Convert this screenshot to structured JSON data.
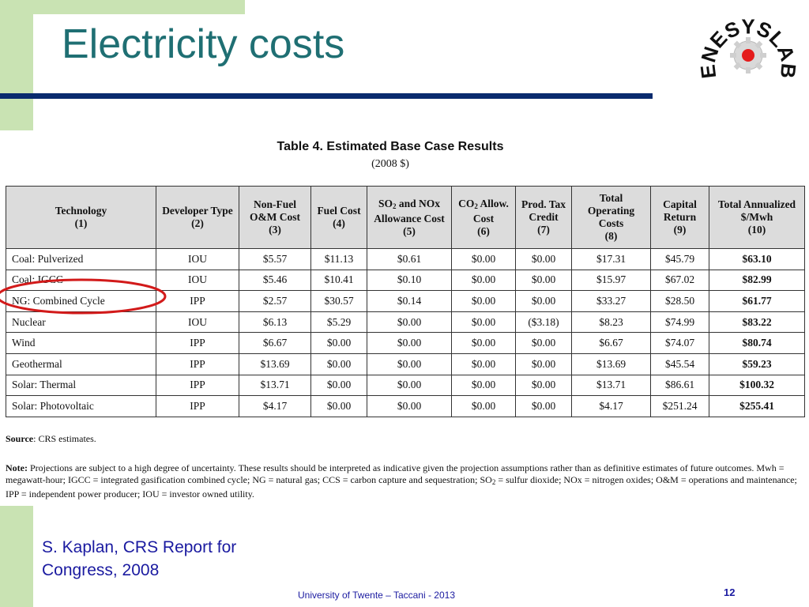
{
  "slide": {
    "title": "Electricity costs",
    "logo_text": "ENESYSLAB",
    "citation_line1": "S. Kaplan, CRS Report for",
    "citation_line2": "Congress, 2008",
    "footer": "University of Twente – Taccani - 2013",
    "page_number": "12"
  },
  "colors": {
    "accent_green": "#c9e3b3",
    "title_teal": "#1f6f73",
    "rule_navy": "#0a2b6e",
    "footer_blue": "#1a1aa0",
    "ellipse_red": "#d21a1a"
  },
  "table": {
    "title": "Table 4. Estimated Base Case Results",
    "subtitle": "(2008 $)",
    "headers": [
      {
        "line1": "Technology",
        "line2": "(1)"
      },
      {
        "line1": "Developer Type",
        "line2": "(2)"
      },
      {
        "line1": "Non-Fuel",
        "line2": "O&M Cost",
        "line3": "(3)"
      },
      {
        "line1": "Fuel Cost",
        "line2": "(4)"
      },
      {
        "pre": "SO",
        "sub": "2",
        "post": " and NOx",
        "line2": "Allowance Cost",
        "line3": "(5)"
      },
      {
        "pre": "CO",
        "sub": "2",
        "post": " Allow.",
        "line2": "Cost",
        "line3": "(6)"
      },
      {
        "line1": "Prod. Tax",
        "line2": "Credit",
        "line3": "(7)"
      },
      {
        "line1": "Total",
        "line2": "Operating",
        "line3": "Costs",
        "line4": "(8)"
      },
      {
        "line1": "Capital",
        "line2": "Return",
        "line3": "(9)"
      },
      {
        "line1": "Total Annualized",
        "line2": "$/Mwh",
        "line3": "(10)"
      }
    ],
    "rows": [
      [
        "Coal: Pulverized",
        "IOU",
        "$5.57",
        "$11.13",
        "$0.61",
        "$0.00",
        "$0.00",
        "$17.31",
        "$45.79",
        "$63.10"
      ],
      [
        "Coal: IGCC",
        "IOU",
        "$5.46",
        "$10.41",
        "$0.10",
        "$0.00",
        "$0.00",
        "$15.97",
        "$67.02",
        "$82.99"
      ],
      [
        "NG: Combined Cycle",
        "IPP",
        "$2.57",
        "$30.57",
        "$0.14",
        "$0.00",
        "$0.00",
        "$33.27",
        "$28.50",
        "$61.77"
      ],
      [
        "Nuclear",
        "IOU",
        "$6.13",
        "$5.29",
        "$0.00",
        "$0.00",
        "($3.18)",
        "$8.23",
        "$74.99",
        "$83.22"
      ],
      [
        "Wind",
        "IPP",
        "$6.67",
        "$0.00",
        "$0.00",
        "$0.00",
        "$0.00",
        "$6.67",
        "$74.07",
        "$80.74"
      ],
      [
        "Geothermal",
        "IPP",
        "$13.69",
        "$0.00",
        "$0.00",
        "$0.00",
        "$0.00",
        "$13.69",
        "$45.54",
        "$59.23"
      ],
      [
        "Solar: Thermal",
        "IPP",
        "$13.71",
        "$0.00",
        "$0.00",
        "$0.00",
        "$0.00",
        "$13.71",
        "$86.61",
        "$100.32"
      ],
      [
        "Solar: Photovoltaic",
        "IPP",
        "$4.17",
        "$0.00",
        "$0.00",
        "$0.00",
        "$0.00",
        "$4.17",
        "$251.24",
        "$255.41"
      ]
    ],
    "source_label": "Source",
    "source_text": ": CRS estimates.",
    "note_label": "Note:",
    "note_part1": " Projections are subject to a high degree of uncertainty.  These results should be interpreted as indicative given the projection assumptions rather than as definitive estimates of future outcomes.  Mwh = megawatt-hour; IGCC = integrated gasification combined cycle; NG = natural gas; CCS = carbon capture and sequestration; SO",
    "note_sub": "2",
    "note_part2": " = sulfur dioxide; NOx = nitrogen oxides; O&M = operations and maintenance; IPP = independent power producer; IOU = investor owned utility."
  }
}
